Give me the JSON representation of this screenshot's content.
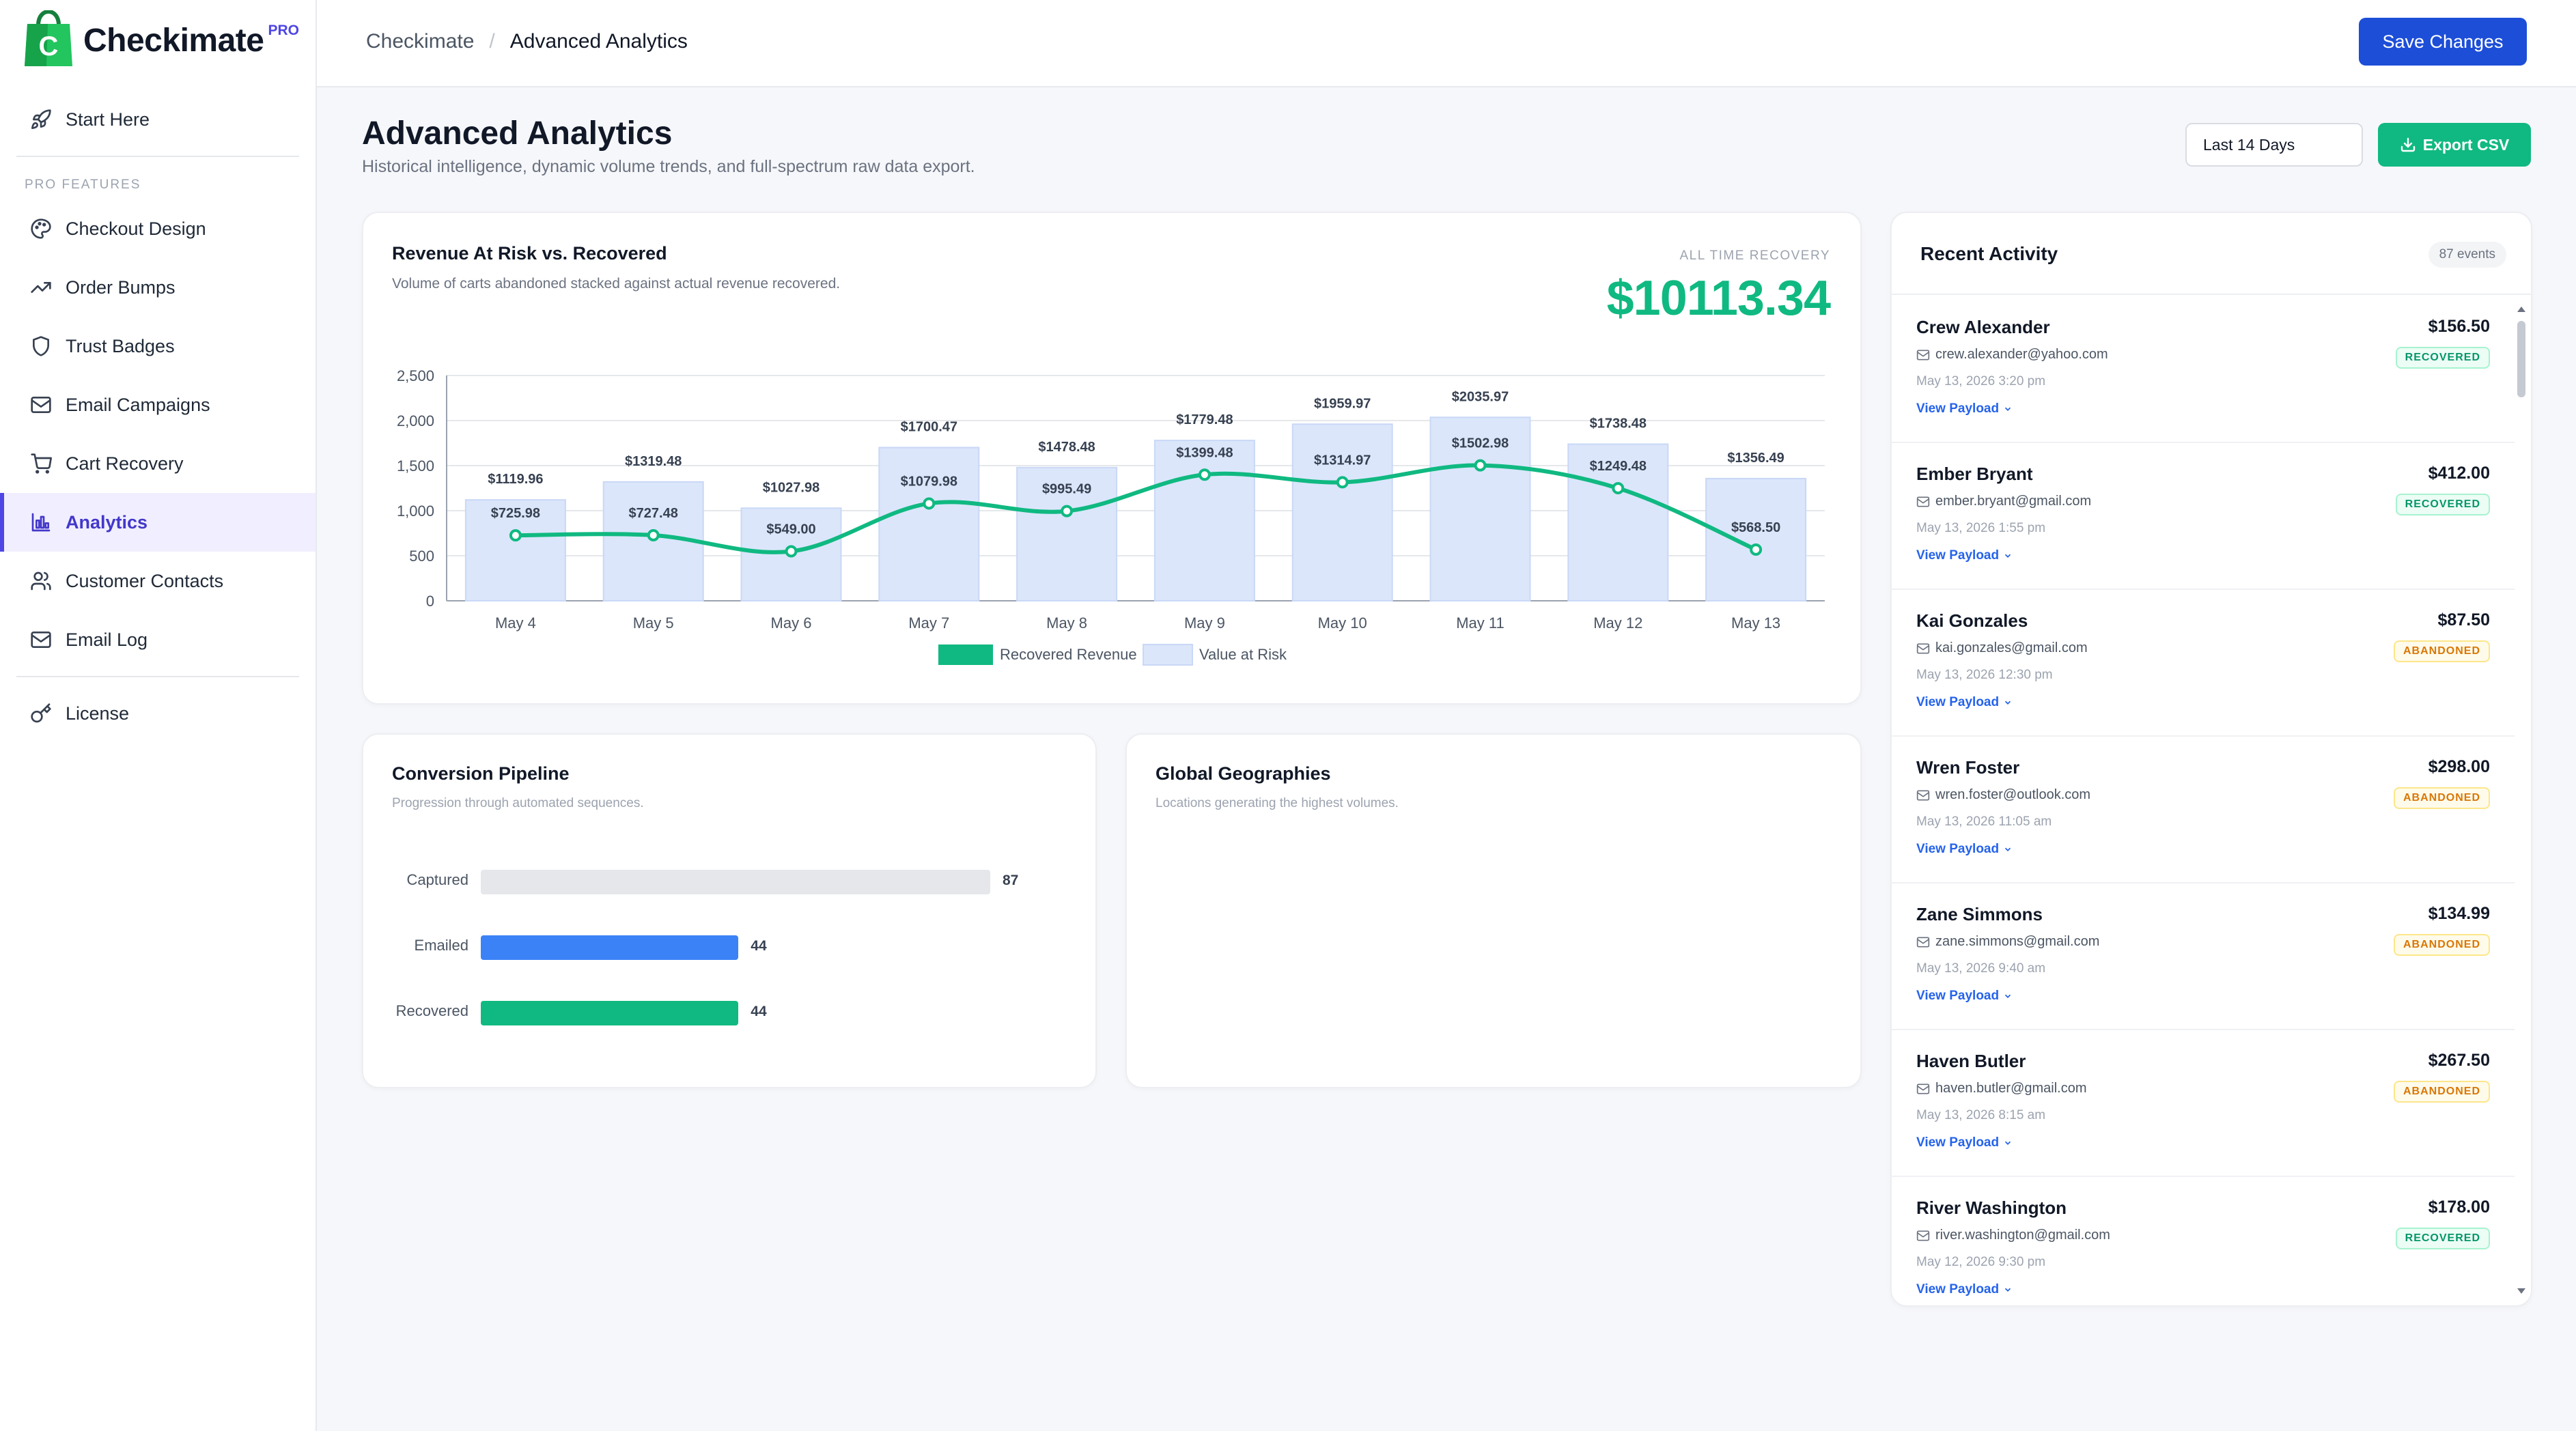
{
  "brand": {
    "name": "Checkimate",
    "badge": "PRO",
    "accent": "#4f46e5",
    "logo_color": "#22c55e"
  },
  "sidebar": {
    "top_item": {
      "label": "Start Here",
      "icon": "rocket-icon"
    },
    "section_label": "PRO FEATURES",
    "items": [
      {
        "label": "Checkout Design",
        "icon": "palette-icon",
        "active": false
      },
      {
        "label": "Order Bumps",
        "icon": "trending-up-icon",
        "active": false
      },
      {
        "label": "Trust Badges",
        "icon": "shield-icon",
        "active": false
      },
      {
        "label": "Email Campaigns",
        "icon": "mail-icon",
        "active": false
      },
      {
        "label": "Cart Recovery",
        "icon": "cart-icon",
        "active": false
      },
      {
        "label": "Analytics",
        "icon": "bar-chart-icon",
        "active": true
      },
      {
        "label": "Customer Contacts",
        "icon": "users-icon",
        "active": false
      },
      {
        "label": "Email Log",
        "icon": "mail-log-icon",
        "active": false
      }
    ],
    "bottom_item": {
      "label": "License",
      "icon": "key-icon"
    }
  },
  "header": {
    "breadcrumb_root": "Checkimate",
    "breadcrumb_separator": "/",
    "breadcrumb_current": "Advanced Analytics",
    "save_label": "Save Changes"
  },
  "page": {
    "title": "Advanced Analytics",
    "subtitle": "Historical intelligence, dynamic volume trends, and full-spectrum raw data export.",
    "date_range": "Last 14 Days",
    "export_label": "Export CSV"
  },
  "revenue_card": {
    "title": "Revenue At Risk vs. Recovered",
    "subtitle": "Volume of carts abandoned stacked against actual revenue recovered.",
    "all_time_label": "ALL TIME RECOVERY",
    "all_time_value": "$10113.34"
  },
  "chart_data": {
    "type": "bar",
    "categories": [
      "May 4",
      "May 5",
      "May 6",
      "May 7",
      "May 8",
      "May 9",
      "May 10",
      "May 11",
      "May 12",
      "May 13"
    ],
    "ylim": [
      0,
      2500
    ],
    "yticks": [
      0,
      500,
      1000,
      1500,
      2000,
      2500
    ],
    "ytick_labels": [
      "0",
      "500",
      "1,000",
      "1,500",
      "2,000",
      "2,500"
    ],
    "grid": true,
    "legend_position": "bottom",
    "series": [
      {
        "name": "Value at Risk",
        "type": "bar",
        "color": "#dbe6fb",
        "values": [
          1119.96,
          1319.48,
          1027.98,
          1700.47,
          1478.48,
          1779.48,
          1959.97,
          2035.97,
          1738.48,
          1356.49
        ],
        "labels": [
          "$1119.96",
          "$1319.48",
          "$1027.98",
          "$1700.47",
          "$1478.48",
          "$1779.48",
          "$1959.97",
          "$2035.97",
          "$1738.48",
          "$1356.49"
        ]
      },
      {
        "name": "Recovered Revenue",
        "type": "line",
        "color": "#10b981",
        "values": [
          725.98,
          727.48,
          549.0,
          1079.98,
          995.49,
          1399.48,
          1314.97,
          1502.98,
          1249.48,
          568.5
        ],
        "labels": [
          "$725.98",
          "$727.48",
          "$549.00",
          "$1079.98",
          "$995.49",
          "$1399.48",
          "$1314.97",
          "$1502.98",
          "$1249.48",
          "$568.50"
        ]
      }
    ]
  },
  "pipeline": {
    "title": "Conversion Pipeline",
    "subtitle": "Progression through automated sequences.",
    "max": 87,
    "rows": [
      {
        "label": "Captured",
        "value": 87,
        "display": "87",
        "color": "#e5e7eb"
      },
      {
        "label": "Emailed",
        "value": 44,
        "display": "44",
        "color": "#3b82f6"
      },
      {
        "label": "Recovered",
        "value": 44,
        "display": "44",
        "color": "#10b981"
      }
    ]
  },
  "geo": {
    "title": "Global Geographies",
    "subtitle": "Locations generating the highest volumes."
  },
  "activity": {
    "title": "Recent Activity",
    "badge": "87 events",
    "link_label": "View Payload",
    "items": [
      {
        "name": "Crew Alexander",
        "amount": "$156.50",
        "email": "crew.alexander@yahoo.com",
        "date": "May 13, 2026 3:20 pm",
        "status": "RECOVERED"
      },
      {
        "name": "Ember Bryant",
        "amount": "$412.00",
        "email": "ember.bryant@gmail.com",
        "date": "May 13, 2026 1:55 pm",
        "status": "RECOVERED"
      },
      {
        "name": "Kai Gonzales",
        "amount": "$87.50",
        "email": "kai.gonzales@gmail.com",
        "date": "May 13, 2026 12:30 pm",
        "status": "ABANDONED"
      },
      {
        "name": "Wren Foster",
        "amount": "$298.00",
        "email": "wren.foster@outlook.com",
        "date": "May 13, 2026 11:05 am",
        "status": "ABANDONED"
      },
      {
        "name": "Zane Simmons",
        "amount": "$134.99",
        "email": "zane.simmons@gmail.com",
        "date": "May 13, 2026 9:40 am",
        "status": "ABANDONED"
      },
      {
        "name": "Haven Butler",
        "amount": "$267.50",
        "email": "haven.butler@gmail.com",
        "date": "May 13, 2026 8:15 am",
        "status": "ABANDONED"
      },
      {
        "name": "River Washington",
        "amount": "$178.00",
        "email": "river.washington@gmail.com",
        "date": "May 12, 2026 9:30 pm",
        "status": "RECOVERED"
      }
    ]
  }
}
